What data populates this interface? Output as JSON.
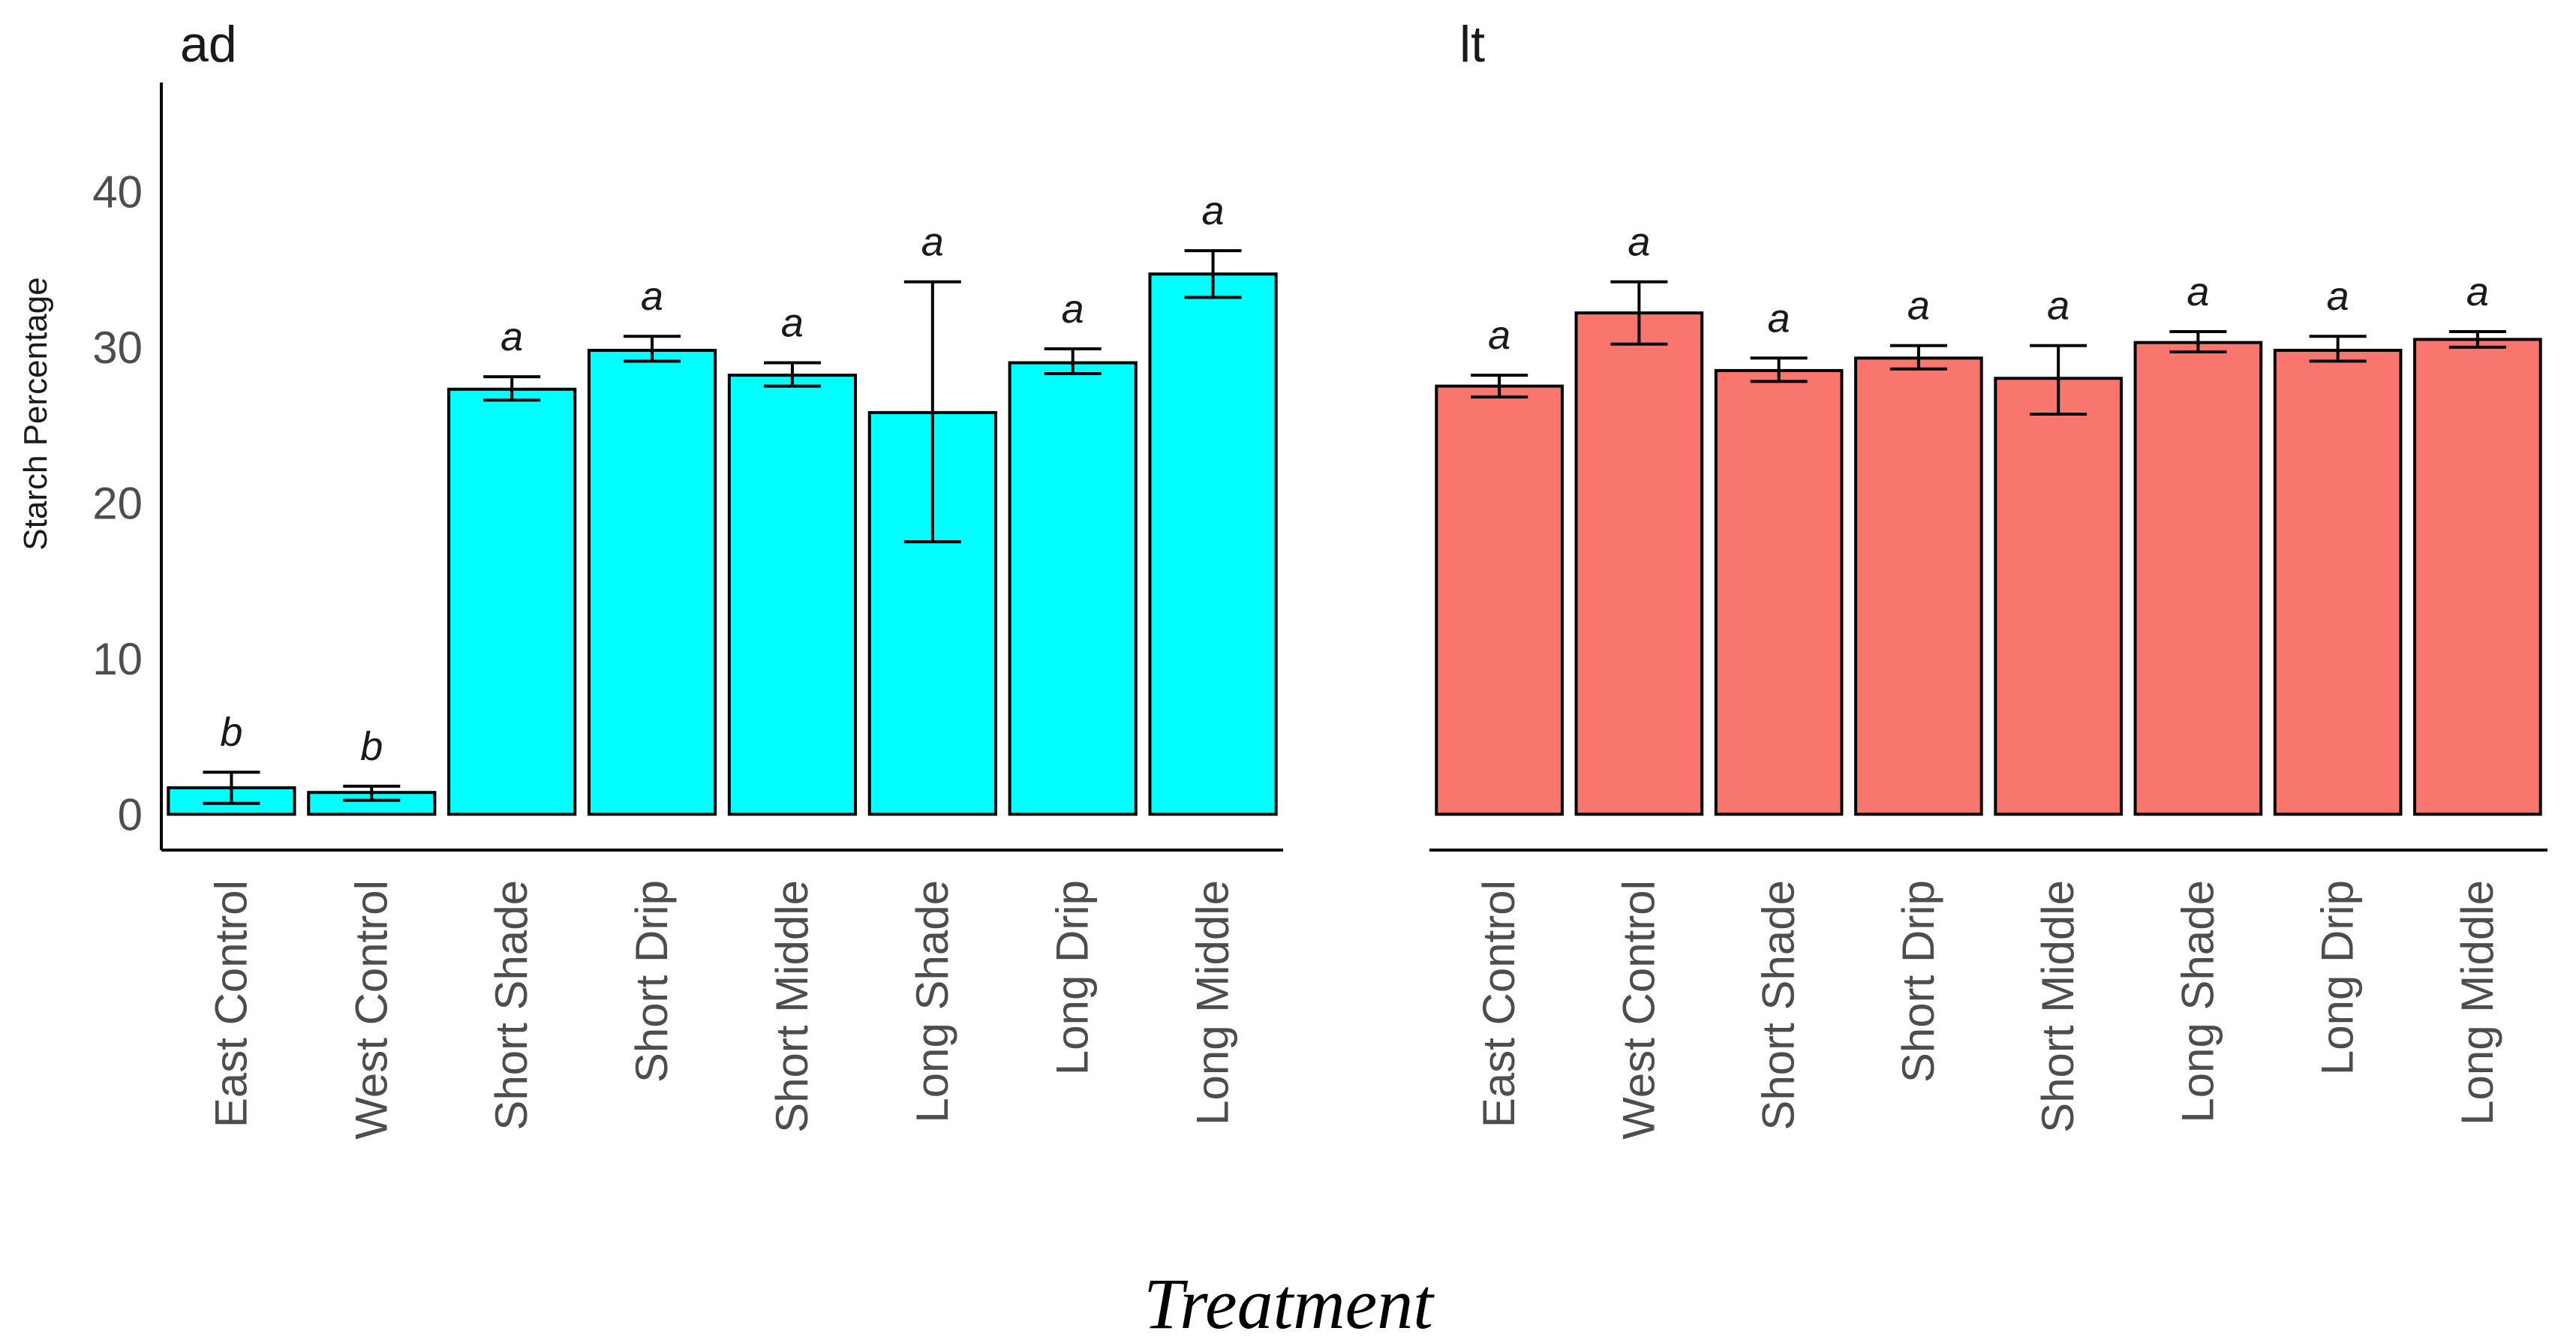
{
  "xlabel": "Treatment",
  "chart_data": [
    {
      "type": "bar",
      "title": "ad",
      "ylabel": "Starch Percentage",
      "xlabel": "",
      "ylim": [
        -2.3,
        47
      ],
      "yticks": [
        0,
        10,
        20,
        30,
        40
      ],
      "color": "#00FFFF",
      "categories": [
        "East Control",
        "West Control",
        "Short Shade",
        "Short Drip",
        "Short Middle",
        "Long Shade",
        "Long Drip",
        "Long Middle"
      ],
      "values": [
        1.7,
        1.4,
        27.3,
        29.8,
        28.2,
        25.8,
        29.0,
        34.7
      ],
      "error_low": [
        0.7,
        0.9,
        26.6,
        29.1,
        27.5,
        17.5,
        28.3,
        33.2
      ],
      "error_high": [
        2.7,
        1.8,
        28.1,
        30.7,
        29.0,
        34.2,
        29.9,
        36.2
      ],
      "labels": [
        "b",
        "b",
        "a",
        "a",
        "a",
        "a",
        "a",
        "a"
      ],
      "grid": false
    },
    {
      "type": "bar",
      "title": "lt",
      "ylabel": "",
      "xlabel": "",
      "ylim": [
        -2.3,
        47
      ],
      "color": "#F8766D",
      "categories": [
        "East Control",
        "West Control",
        "Short Shade",
        "Short Drip",
        "Short Middle",
        "Long Shade",
        "Long Drip",
        "Long Middle"
      ],
      "values": [
        27.5,
        32.2,
        28.5,
        29.3,
        28.0,
        30.3,
        29.8,
        30.5
      ],
      "error_low": [
        26.8,
        30.2,
        27.8,
        28.6,
        25.7,
        29.7,
        29.1,
        30.0
      ],
      "error_high": [
        28.2,
        34.2,
        29.3,
        30.1,
        30.1,
        31.0,
        30.7,
        31.0
      ],
      "labels": [
        "a",
        "a",
        "a",
        "a",
        "a",
        "a",
        "a",
        "a"
      ],
      "grid": false
    }
  ]
}
